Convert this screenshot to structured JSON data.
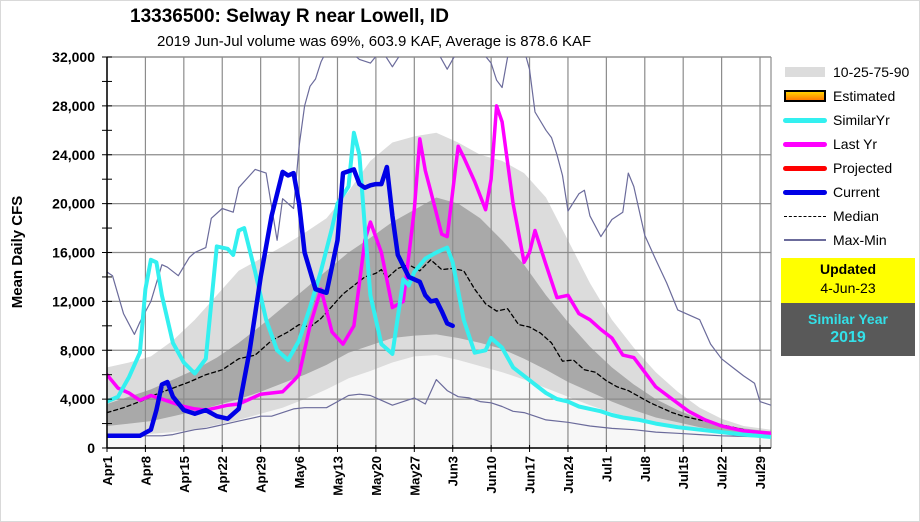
{
  "chart_data": {
    "type": "line",
    "title": "13336500: Selway R near Lowell, ID",
    "subtitle": "2019 Jun-Jul volume was 69%, 603.9 KAF, Average is 878.6 KAF",
    "xlabel": "",
    "ylabel": "Mean Daily CFS",
    "ylim": [
      0,
      32000
    ],
    "yticks": [
      0,
      4000,
      8000,
      12000,
      16000,
      20000,
      24000,
      28000,
      32000
    ],
    "ytick_labels": [
      "0",
      "4,000",
      "8,000",
      "12,000",
      "16,000",
      "20,000",
      "24,000",
      "28,000",
      "32,000"
    ],
    "x_unit": "day index from Apr 1",
    "xlim": [
      0,
      121
    ],
    "xticks": [
      0,
      7,
      14,
      21,
      28,
      35,
      42,
      49,
      56,
      63,
      70,
      77,
      84,
      91,
      98,
      105,
      112,
      119
    ],
    "xtick_labels": [
      "Apr1",
      "Apr8",
      "Apr15",
      "Apr22",
      "Apr29",
      "May6",
      "May13",
      "May20",
      "May27",
      "Jun3",
      "Jun10",
      "Jun17",
      "Jun24",
      "Jul1",
      "Jul8",
      "Jul15",
      "Jul22",
      "Jul29"
    ],
    "grid": true,
    "legend_position": "right",
    "bands": {
      "x": [
        0,
        4,
        8,
        12,
        16,
        20,
        24,
        28,
        32,
        36,
        40,
        44,
        48,
        52,
        56,
        60,
        64,
        68,
        72,
        76,
        80,
        84,
        88,
        92,
        96,
        100,
        104,
        108,
        112,
        116,
        121
      ],
      "p10": [
        900,
        1000,
        1150,
        1300,
        1500,
        1900,
        2300,
        2800,
        3300,
        4000,
        4800,
        5700,
        6300,
        7000,
        7500,
        7600,
        7200,
        6700,
        6200,
        5600,
        4900,
        4200,
        3500,
        2900,
        2400,
        2000,
        1700,
        1400,
        1200,
        1000,
        850
      ],
      "p25": [
        1800,
        2000,
        2200,
        2600,
        3000,
        3500,
        4000,
        4600,
        5300,
        6000,
        6800,
        7800,
        8400,
        9000,
        9200,
        9300,
        9000,
        8600,
        8100,
        7300,
        6400,
        5400,
        4600,
        3800,
        3100,
        2500,
        2100,
        1700,
        1400,
        1150,
        950
      ],
      "p75": [
        3600,
        4200,
        4800,
        5600,
        6400,
        7400,
        8600,
        10000,
        11500,
        13000,
        14500,
        16000,
        17200,
        18500,
        19500,
        20500,
        20000,
        18800,
        17000,
        15000,
        12500,
        10300,
        8300,
        6600,
        5200,
        4000,
        3100,
        2400,
        1900,
        1600,
        1350
      ],
      "p90": [
        6600,
        7000,
        7500,
        8800,
        10500,
        12500,
        14500,
        15500,
        16500,
        17600,
        18800,
        21000,
        23500,
        25000,
        25500,
        25800,
        25000,
        24000,
        23500,
        22500,
        20500,
        17000,
        13500,
        10500,
        8200,
        6200,
        4600,
        3300,
        2400,
        1800,
        1500
      ]
    },
    "series": [
      {
        "name": "Max-Min (max)",
        "x": [
          0,
          1,
          3,
          5,
          6,
          8,
          10,
          11,
          13,
          15,
          16,
          18,
          19,
          21,
          23,
          24,
          26,
          27,
          29,
          31,
          32,
          34,
          35,
          36,
          37,
          38,
          39,
          40,
          44,
          46,
          48,
          50,
          52,
          54,
          56,
          58,
          60,
          62,
          64,
          66,
          68,
          70,
          71,
          72,
          73,
          74,
          75,
          76,
          77,
          78,
          80,
          81,
          82,
          83,
          84,
          86,
          87,
          88,
          90,
          92,
          94,
          95,
          96,
          98,
          100,
          102,
          104,
          106,
          108,
          110,
          112,
          114,
          116,
          118,
          119,
          121
        ],
        "values": [
          14400,
          14100,
          11000,
          9300,
          10300,
          12000,
          15000,
          14800,
          14100,
          15600,
          16000,
          16400,
          18800,
          19600,
          19300,
          21300,
          22300,
          22800,
          22500,
          17000,
          20400,
          19600,
          24700,
          28000,
          29600,
          30200,
          31600,
          32500,
          33500,
          31800,
          31500,
          32700,
          31200,
          33500,
          33000,
          34500,
          33200,
          31000,
          34000,
          35000,
          33000,
          31500,
          30100,
          29500,
          32000,
          34000,
          36000,
          34000,
          31000,
          27500,
          26000,
          25400,
          24000,
          22300,
          19400,
          20800,
          21100,
          19000,
          17300,
          18700,
          19300,
          22500,
          21400,
          17400,
          15400,
          13500,
          11300,
          10900,
          10500,
          8500,
          7300,
          6600,
          5900,
          5300,
          3800,
          3500
        ],
        "color": "#6b6b9b"
      },
      {
        "name": "Max-Min (min)",
        "x": [
          0,
          4,
          8,
          10,
          12,
          14,
          16,
          18,
          20,
          22,
          24,
          26,
          28,
          30,
          32,
          34,
          36,
          38,
          40,
          42,
          44,
          46,
          48,
          50,
          52,
          54,
          56,
          58,
          60,
          62,
          64,
          66,
          68,
          70,
          72,
          74,
          76,
          78,
          80,
          84,
          88,
          92,
          96,
          100,
          104,
          108,
          112,
          116,
          121
        ],
        "values": [
          1000,
          1000,
          1000,
          1000,
          1100,
          1300,
          1500,
          1600,
          1800,
          2000,
          2200,
          2400,
          2600,
          2600,
          2900,
          3200,
          3300,
          3300,
          3300,
          3800,
          4300,
          4400,
          4300,
          3900,
          3500,
          3800,
          4100,
          3600,
          5600,
          4700,
          4200,
          4100,
          3800,
          3700,
          3400,
          3000,
          2900,
          2600,
          2300,
          2100,
          1800,
          1600,
          1500,
          1300,
          1200,
          1100,
          1000,
          950,
          900
        ],
        "color": "#6b6b9b"
      },
      {
        "name": "Median",
        "x": [
          0,
          3,
          6,
          9,
          12,
          15,
          18,
          21,
          24,
          27,
          30,
          33,
          35,
          37,
          39,
          41,
          43,
          45,
          47,
          49,
          50,
          51,
          53,
          55,
          57,
          59,
          61,
          63,
          65,
          67,
          69,
          71,
          73,
          75,
          77,
          79,
          81,
          83,
          85,
          87,
          89,
          91,
          93,
          95,
          97,
          99,
          101,
          103,
          105,
          107,
          110,
          113,
          116,
          119,
          121
        ],
        "values": [
          2900,
          3300,
          3800,
          4400,
          4900,
          5400,
          6000,
          6400,
          7300,
          7600,
          8800,
          9500,
          10100,
          9900,
          10600,
          11600,
          12600,
          13300,
          14000,
          14300,
          14600,
          13900,
          14700,
          15000,
          14500,
          15400,
          14600,
          14700,
          14500,
          13000,
          11800,
          11200,
          11400,
          10100,
          9900,
          9400,
          8600,
          7100,
          7200,
          6400,
          6200,
          5500,
          5000,
          4700,
          4200,
          3700,
          3300,
          2900,
          2600,
          2400,
          2100,
          1800,
          1500,
          1300,
          1200
        ],
        "color": "#000000"
      },
      {
        "name": "Last Yr",
        "x": [
          0,
          2,
          4,
          6,
          8,
          10,
          12,
          14,
          16,
          18,
          20,
          22,
          24,
          26,
          28,
          30,
          32,
          34,
          35,
          37,
          39,
          41,
          43,
          45,
          47,
          48,
          50,
          52,
          54,
          56,
          57,
          58,
          59,
          61,
          62,
          63,
          64,
          65,
          67,
          69,
          70,
          71,
          72,
          74,
          76,
          77,
          78,
          80,
          82,
          84,
          86,
          88,
          90,
          92,
          94,
          96,
          98,
          100,
          103,
          106,
          109,
          112,
          116,
          121
        ],
        "values": [
          6000,
          4900,
          4500,
          3900,
          4300,
          4000,
          3700,
          3400,
          3200,
          3100,
          3300,
          3500,
          3600,
          4000,
          4400,
          4500,
          4600,
          5500,
          6000,
          10000,
          13000,
          9500,
          8500,
          10000,
          17000,
          18500,
          16000,
          11500,
          12000,
          19500,
          25300,
          22700,
          21000,
          17500,
          17300,
          21000,
          24700,
          23800,
          21800,
          19500,
          22000,
          28000,
          26700,
          20000,
          15200,
          16000,
          17800,
          15000,
          12300,
          12500,
          11000,
          10500,
          9700,
          9000,
          7600,
          7400,
          6200,
          5000,
          4000,
          3000,
          2300,
          1800,
          1400,
          1200
        ],
        "color": "#ff00ff"
      },
      {
        "name": "SimilarYr",
        "x": [
          0,
          2,
          4,
          6,
          7,
          8,
          9,
          10,
          12,
          14,
          16,
          18,
          20,
          22,
          23,
          24,
          25,
          27,
          29,
          31,
          33,
          35,
          37,
          39,
          41,
          42,
          44,
          45,
          46,
          47,
          48,
          50,
          52,
          54,
          55,
          56,
          58,
          60,
          62,
          63,
          65,
          67,
          69,
          70,
          72,
          74,
          76,
          78,
          80,
          82,
          84,
          86,
          88,
          90,
          92,
          94,
          97,
          100,
          104,
          108,
          112,
          116,
          121
        ],
        "values": [
          3800,
          4200,
          5800,
          7800,
          13000,
          15400,
          15200,
          12500,
          8600,
          7000,
          6100,
          7300,
          16500,
          16300,
          15800,
          17800,
          18000,
          14400,
          10500,
          8000,
          7200,
          8800,
          11500,
          14500,
          18000,
          20000,
          21400,
          25800,
          24000,
          18000,
          12500,
          8500,
          7700,
          13800,
          13300,
          14400,
          15500,
          16000,
          16400,
          15200,
          10500,
          7800,
          8000,
          9000,
          8200,
          6600,
          5900,
          5200,
          4500,
          4000,
          3800,
          3400,
          3200,
          3000,
          2700,
          2500,
          2300,
          2000,
          1700,
          1500,
          1300,
          1100,
          900
        ],
        "color": "#33f0f0"
      },
      {
        "name": "Current",
        "x": [
          0,
          3,
          6,
          8,
          9,
          10,
          11,
          12,
          14,
          16,
          18,
          20,
          22,
          24,
          26,
          28,
          30,
          32,
          33,
          34,
          35,
          36,
          38,
          40,
          42,
          43,
          45,
          46,
          47,
          48,
          49,
          50,
          51,
          52,
          53,
          55,
          57,
          58,
          59,
          60,
          61,
          62,
          63
        ],
        "values": [
          1000,
          1000,
          1000,
          1500,
          3100,
          5200,
          5400,
          4200,
          3100,
          2800,
          3100,
          2600,
          2400,
          3200,
          8000,
          14000,
          19000,
          22600,
          22300,
          22500,
          20000,
          16000,
          13000,
          12700,
          17000,
          22500,
          22800,
          21600,
          21300,
          21500,
          21600,
          21600,
          23000,
          19000,
          15800,
          14000,
          13600,
          12500,
          12000,
          12100,
          11200,
          10200,
          10000
        ],
        "color": "#0000e6"
      }
    ],
    "legend": [
      {
        "label": "10-25-75-90",
        "kind": "band"
      },
      {
        "label": "Estimated",
        "kind": "estimated"
      },
      {
        "label": "SimilarYr",
        "kind": "line",
        "color": "#33f0f0"
      },
      {
        "label": "Last Yr",
        "kind": "line",
        "color": "#ff00ff"
      },
      {
        "label": "Projected",
        "kind": "line",
        "color": "#ff0000"
      },
      {
        "label": "Current",
        "kind": "line",
        "color": "#0000e6"
      },
      {
        "label": "Median",
        "kind": "dashed",
        "color": "#000000"
      },
      {
        "label": "Max-Min",
        "kind": "thin",
        "color": "#6b6b9b"
      }
    ],
    "band_colors": {
      "outer": "#dcdcdc",
      "inner": "#a9a9a9",
      "below10": "#f7f7f7"
    }
  },
  "info": {
    "updated_label": "Updated",
    "updated_date": "4-Jun-23",
    "similar_label": "Similar Year",
    "similar_year": "2019"
  }
}
